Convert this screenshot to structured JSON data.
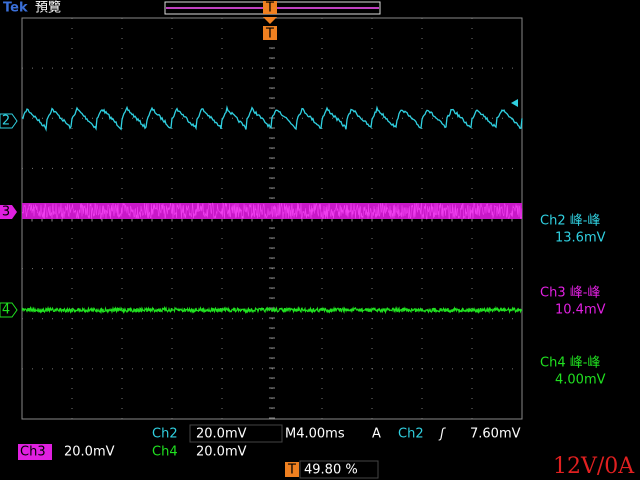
{
  "header": {
    "brand": "Tek",
    "mode": "預覽",
    "trigger_marker": "T"
  },
  "channel_markers": [
    "2",
    "3",
    "4"
  ],
  "measurements": [
    {
      "label": "Ch2 峰-峰",
      "value": "13.6mV"
    },
    {
      "label": "Ch3 峰-峰",
      "value": "10.4mV"
    },
    {
      "label": "Ch4 峰-峰",
      "value": "4.00mV"
    }
  ],
  "status": {
    "ch2_name": "Ch2",
    "ch2_scale": "20.0mV",
    "timebase": "M4.00ms",
    "acq": "A",
    "trig_source": "Ch2",
    "trig_slope": "ʃ",
    "trig_level": "7.60mV",
    "ch3_name": "Ch3",
    "ch3_scale": "20.0mV",
    "ch4_name": "Ch4",
    "ch4_scale": "20.0mV",
    "trig_pos_marker": "T",
    "trig_pos": "49.80 %"
  },
  "note": "12V/0A"
}
